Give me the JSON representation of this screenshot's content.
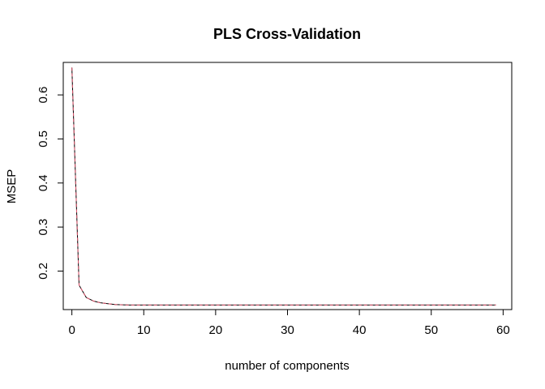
{
  "chart_data": {
    "type": "line",
    "title": "PLS Cross-Validation",
    "xlabel": "number of components",
    "ylabel": "MSEP",
    "xlim": [
      -1.2,
      61.2
    ],
    "ylim": [
      0.1126,
      0.6738
    ],
    "x_ticks": [
      0,
      10,
      20,
      30,
      40,
      50,
      60
    ],
    "y_ticks": [
      0.2,
      0.3,
      0.4,
      0.5,
      0.6
    ],
    "x_tick_labels": [
      "0",
      "10",
      "20",
      "30",
      "40",
      "50",
      "60"
    ],
    "y_tick_labels": [
      "0.2",
      "0.3",
      "0.4",
      "0.5",
      "0.6"
    ],
    "grid": false,
    "legend": "none",
    "series": [
      {
        "color": "#000000",
        "style": "solid",
        "x": [
          0,
          1,
          2,
          3,
          4,
          5,
          6,
          7,
          8,
          9,
          10,
          11,
          12,
          13,
          14,
          15,
          16,
          17,
          18,
          19,
          20,
          21,
          22,
          23,
          24,
          25,
          26,
          27,
          28,
          29,
          30,
          31,
          32,
          33,
          34,
          35,
          36,
          37,
          38,
          39,
          40,
          41,
          42,
          43,
          44,
          45,
          46,
          47,
          48,
          49,
          50,
          51,
          52,
          53,
          54,
          55,
          56,
          57,
          58,
          59
        ],
        "values": [
          0.662,
          0.168,
          0.14,
          0.132,
          0.128,
          0.126,
          0.124,
          0.1235,
          0.123,
          0.123,
          0.123,
          0.123,
          0.123,
          0.123,
          0.123,
          0.123,
          0.123,
          0.123,
          0.123,
          0.123,
          0.123,
          0.123,
          0.123,
          0.123,
          0.123,
          0.123,
          0.123,
          0.123,
          0.123,
          0.123,
          0.123,
          0.123,
          0.123,
          0.123,
          0.123,
          0.123,
          0.123,
          0.123,
          0.123,
          0.123,
          0.123,
          0.123,
          0.123,
          0.123,
          0.123,
          0.123,
          0.123,
          0.123,
          0.123,
          0.123,
          0.123,
          0.123,
          0.123,
          0.123,
          0.123,
          0.123,
          0.123,
          0.123,
          0.123,
          0.123
        ]
      },
      {
        "color": "#df536b",
        "style": "dashed",
        "x": [
          0,
          1,
          2,
          3,
          4,
          5,
          6,
          7,
          8,
          9,
          10,
          11,
          12,
          13,
          14,
          15,
          16,
          17,
          18,
          19,
          20,
          21,
          22,
          23,
          24,
          25,
          26,
          27,
          28,
          29,
          30,
          31,
          32,
          33,
          34,
          35,
          36,
          37,
          38,
          39,
          40,
          41,
          42,
          43,
          44,
          45,
          46,
          47,
          48,
          49,
          50,
          51,
          52,
          53,
          54,
          55,
          56,
          57,
          58,
          59
        ],
        "values": [
          0.662,
          0.168,
          0.14,
          0.132,
          0.128,
          0.126,
          0.124,
          0.1235,
          0.123,
          0.123,
          0.123,
          0.123,
          0.123,
          0.123,
          0.123,
          0.123,
          0.123,
          0.123,
          0.123,
          0.123,
          0.123,
          0.123,
          0.123,
          0.123,
          0.123,
          0.123,
          0.123,
          0.123,
          0.123,
          0.123,
          0.123,
          0.123,
          0.123,
          0.123,
          0.123,
          0.123,
          0.123,
          0.123,
          0.123,
          0.123,
          0.123,
          0.123,
          0.123,
          0.123,
          0.123,
          0.123,
          0.123,
          0.123,
          0.123,
          0.123,
          0.123,
          0.123,
          0.123,
          0.123,
          0.123,
          0.123,
          0.123,
          0.123,
          0.123,
          0.123
        ]
      }
    ]
  }
}
